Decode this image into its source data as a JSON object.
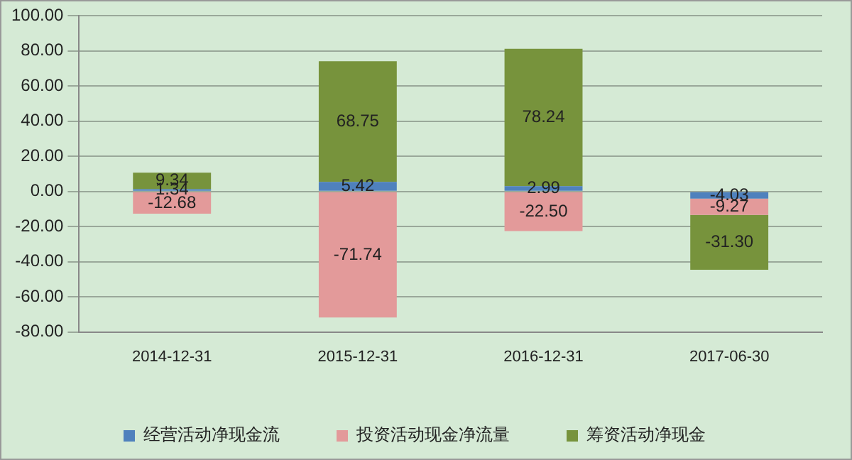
{
  "chart_data": {
    "type": "bar",
    "stacked": true,
    "categories": [
      "2014-12-31",
      "2015-12-31",
      "2016-12-31",
      "2017-06-30"
    ],
    "series": [
      {
        "name": "经营活动净现金流",
        "color": "#4f81bd",
        "values": [
          1.34,
          5.42,
          2.99,
          -4.03
        ],
        "value_labels": [
          "1.34",
          "5.42",
          "2.99",
          "-4.03"
        ]
      },
      {
        "name": "投资活动现金净流量",
        "color": "#e39a9a",
        "values": [
          -12.68,
          -71.74,
          -22.5,
          -9.27
        ],
        "value_labels": [
          "-12.68",
          "-71.74",
          "-22.50",
          "-9.27"
        ]
      },
      {
        "name": "筹资活动净现金",
        "color": "#77933c",
        "values": [
          9.34,
          68.75,
          78.24,
          -31.3
        ],
        "value_labels": [
          "9.34",
          "68.75",
          "78.24",
          "-31.30"
        ]
      }
    ],
    "ylim": [
      -80,
      100
    ],
    "yticks": [
      {
        "value": -80,
        "label": "-80.00"
      },
      {
        "value": -60,
        "label": "-60.00"
      },
      {
        "value": -40,
        "label": "-40.00"
      },
      {
        "value": -20,
        "label": "-20.00"
      },
      {
        "value": 0,
        "label": "0.00"
      },
      {
        "value": 20,
        "label": "20.00"
      },
      {
        "value": 40,
        "label": "40.00"
      },
      {
        "value": 60,
        "label": "60.00"
      },
      {
        "value": 80,
        "label": "80.00"
      },
      {
        "value": 100,
        "label": "100.00"
      }
    ],
    "grid": "y",
    "legend": "bottom"
  }
}
